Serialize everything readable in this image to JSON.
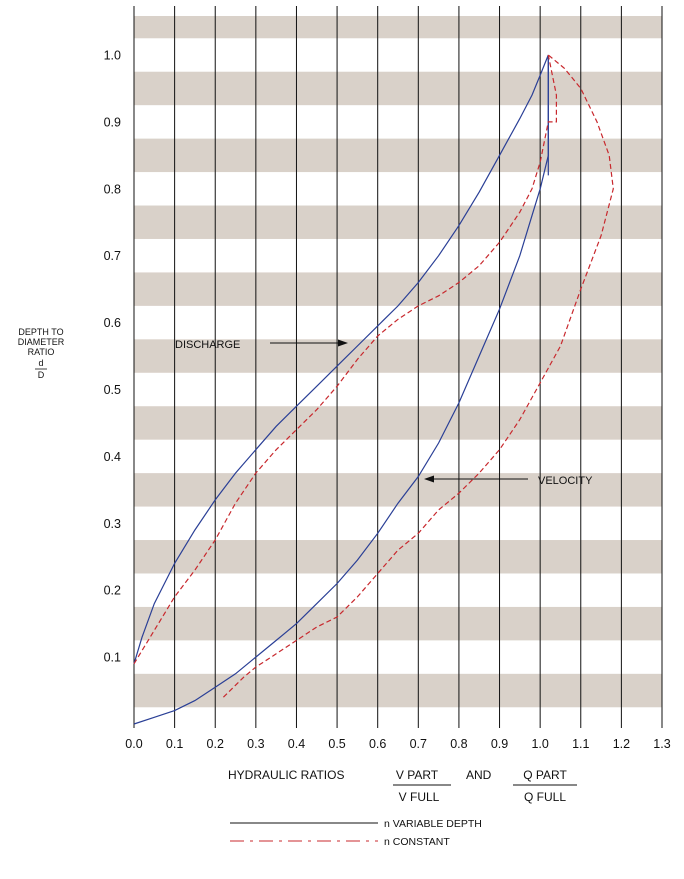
{
  "chart_data": {
    "type": "line",
    "ylabel_lines": [
      "DEPTH TO",
      "DIAMETER",
      "RATIO"
    ],
    "ylabel_fraction": {
      "numerator": "d",
      "denominator": "D"
    },
    "xlabel": {
      "prefix": "HYDRAULIC RATIOS",
      "frac1": {
        "numerator": "V PART",
        "denominator": "V FULL"
      },
      "conjunction": "AND",
      "frac2": {
        "numerator": "Q PART",
        "denominator": "Q FULL"
      }
    },
    "xlim": [
      0.0,
      1.3
    ],
    "ylim": [
      0.0,
      1.05
    ],
    "x_ticks": [
      "0.0",
      "0.1",
      "0.2",
      "0.3",
      "0.4",
      "0.5",
      "0.6",
      "0.7",
      "0.8",
      "0.9",
      "1.0",
      "1.1",
      "1.2",
      "1.3"
    ],
    "y_ticks": [
      "0.1",
      "0.2",
      "0.3",
      "0.4",
      "0.5",
      "0.6",
      "0.7",
      "0.8",
      "0.9",
      "1.0"
    ],
    "grid": {
      "vertical_lines": true,
      "horizontal_bands": true
    },
    "band_color": "#d9d1c9",
    "annotations": [
      {
        "text": "DISCHARGE",
        "x": 0.54,
        "y": 0.565
      },
      {
        "text": "VELOCITY",
        "x": 0.71,
        "y": 0.37
      }
    ],
    "legend": [
      {
        "label": "n VARIABLE DEPTH",
        "style": "solid"
      },
      {
        "label": "n CONSTANT",
        "style": "dashed"
      }
    ],
    "series": [
      {
        "curve": "DISCHARGE",
        "style": "solid",
        "color": "#2a3f96",
        "points": [
          [
            0.0,
            0.09
          ],
          [
            0.02,
            0.13
          ],
          [
            0.05,
            0.18
          ],
          [
            0.1,
            0.24
          ],
          [
            0.15,
            0.29
          ],
          [
            0.2,
            0.335
          ],
          [
            0.25,
            0.375
          ],
          [
            0.3,
            0.41
          ],
          [
            0.35,
            0.445
          ],
          [
            0.4,
            0.475
          ],
          [
            0.45,
            0.505
          ],
          [
            0.5,
            0.535
          ],
          [
            0.55,
            0.565
          ],
          [
            0.6,
            0.595
          ],
          [
            0.65,
            0.625
          ],
          [
            0.7,
            0.66
          ],
          [
            0.75,
            0.7
          ],
          [
            0.8,
            0.745
          ],
          [
            0.85,
            0.795
          ],
          [
            0.9,
            0.85
          ],
          [
            0.95,
            0.905
          ],
          [
            0.98,
            0.94
          ],
          [
            1.0,
            0.97
          ],
          [
            1.02,
            1.0
          ],
          [
            1.02,
            0.82
          ]
        ]
      },
      {
        "curve": "VELOCITY",
        "style": "solid",
        "color": "#2a3f96",
        "points": [
          [
            0.0,
            0.0
          ],
          [
            0.05,
            0.01
          ],
          [
            0.1,
            0.02
          ],
          [
            0.15,
            0.035
          ],
          [
            0.2,
            0.055
          ],
          [
            0.25,
            0.075
          ],
          [
            0.3,
            0.1
          ],
          [
            0.35,
            0.125
          ],
          [
            0.4,
            0.15
          ],
          [
            0.45,
            0.18
          ],
          [
            0.5,
            0.21
          ],
          [
            0.55,
            0.245
          ],
          [
            0.6,
            0.285
          ],
          [
            0.65,
            0.33
          ],
          [
            0.7,
            0.37
          ],
          [
            0.75,
            0.42
          ],
          [
            0.8,
            0.48
          ],
          [
            0.85,
            0.55
          ],
          [
            0.9,
            0.62
          ],
          [
            0.95,
            0.7
          ],
          [
            0.98,
            0.76
          ],
          [
            1.0,
            0.8
          ],
          [
            1.02,
            0.85
          ],
          [
            1.02,
            1.0
          ]
        ]
      },
      {
        "curve": "DISCHARGE",
        "style": "dashed",
        "color": "#c8282d",
        "points": [
          [
            0.0,
            0.09
          ],
          [
            0.03,
            0.12
          ],
          [
            0.06,
            0.15
          ],
          [
            0.1,
            0.19
          ],
          [
            0.15,
            0.23
          ],
          [
            0.2,
            0.275
          ],
          [
            0.25,
            0.33
          ],
          [
            0.3,
            0.375
          ],
          [
            0.35,
            0.41
          ],
          [
            0.4,
            0.44
          ],
          [
            0.45,
            0.47
          ],
          [
            0.5,
            0.505
          ],
          [
            0.55,
            0.545
          ],
          [
            0.6,
            0.58
          ],
          [
            0.65,
            0.605
          ],
          [
            0.7,
            0.625
          ],
          [
            0.75,
            0.64
          ],
          [
            0.8,
            0.66
          ],
          [
            0.85,
            0.685
          ],
          [
            0.9,
            0.72
          ],
          [
            0.95,
            0.765
          ],
          [
            0.98,
            0.8
          ],
          [
            1.0,
            0.84
          ],
          [
            1.02,
            0.9
          ],
          [
            1.04,
            0.9
          ],
          [
            1.04,
            0.94
          ],
          [
            1.02,
            1.0
          ]
        ]
      },
      {
        "curve": "VELOCITY",
        "style": "dashed",
        "color": "#c8282d",
        "points": [
          [
            0.22,
            0.04
          ],
          [
            0.27,
            0.07
          ],
          [
            0.3,
            0.085
          ],
          [
            0.35,
            0.105
          ],
          [
            0.4,
            0.125
          ],
          [
            0.45,
            0.145
          ],
          [
            0.5,
            0.16
          ],
          [
            0.55,
            0.19
          ],
          [
            0.6,
            0.225
          ],
          [
            0.65,
            0.26
          ],
          [
            0.7,
            0.285
          ],
          [
            0.75,
            0.32
          ],
          [
            0.8,
            0.345
          ],
          [
            0.85,
            0.375
          ],
          [
            0.9,
            0.41
          ],
          [
            0.95,
            0.455
          ],
          [
            1.0,
            0.51
          ],
          [
            1.05,
            0.565
          ],
          [
            1.1,
            0.65
          ],
          [
            1.15,
            0.73
          ],
          [
            1.18,
            0.8
          ],
          [
            1.17,
            0.85
          ],
          [
            1.14,
            0.9
          ],
          [
            1.1,
            0.95
          ],
          [
            1.06,
            0.98
          ],
          [
            1.02,
            1.0
          ]
        ]
      }
    ]
  }
}
